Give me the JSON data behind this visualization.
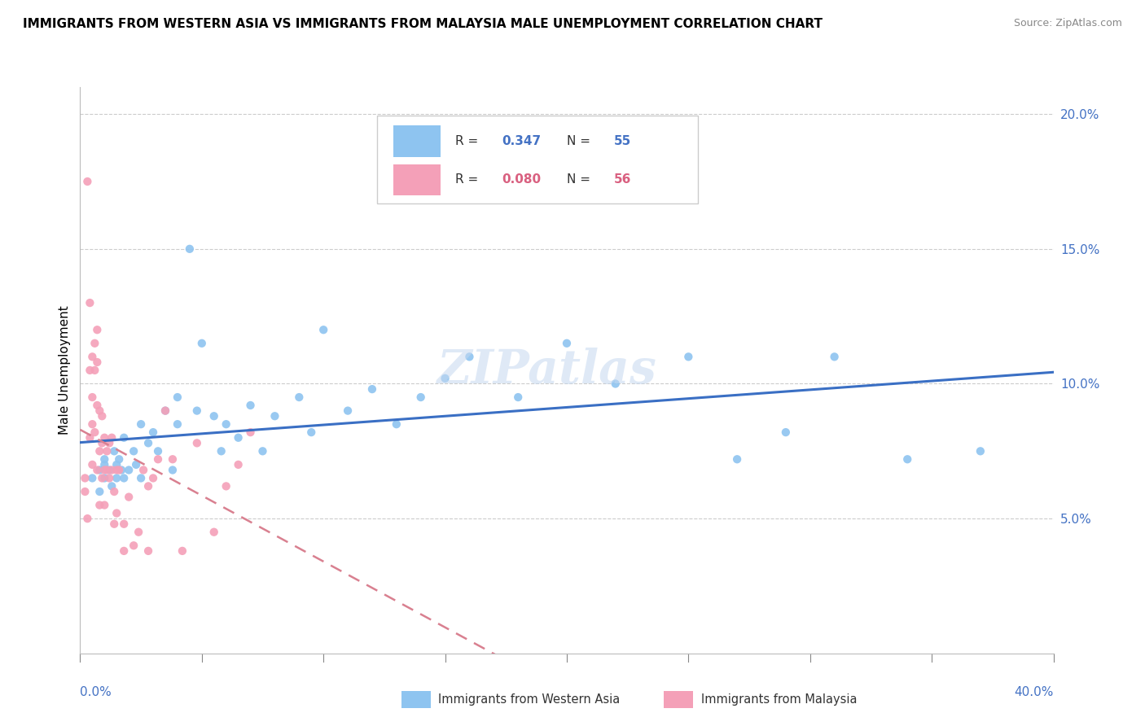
{
  "title": "IMMIGRANTS FROM WESTERN ASIA VS IMMIGRANTS FROM MALAYSIA MALE UNEMPLOYMENT CORRELATION CHART",
  "source": "Source: ZipAtlas.com",
  "ylabel": "Male Unemployment",
  "right_yticks": [
    0.0,
    0.05,
    0.1,
    0.15,
    0.2
  ],
  "right_yticklabels": [
    "",
    "5.0%",
    "10.0%",
    "15.0%",
    "20.0%"
  ],
  "xlim": [
    0.0,
    0.4
  ],
  "ylim": [
    0.0,
    0.21
  ],
  "r_western": "0.347",
  "n_western": "55",
  "r_malaysia": "0.080",
  "n_malaysia": "56",
  "color_western": "#8EC4F0",
  "color_malaysia": "#F4A0B8",
  "color_trend_western": "#3A6FC4",
  "color_trend_malaysia": "#D98090",
  "legend_label_western": "Immigrants from Western Asia",
  "legend_label_malaysia": "Immigrants from Malaysia",
  "western_x": [
    0.005,
    0.008,
    0.008,
    0.01,
    0.01,
    0.01,
    0.012,
    0.013,
    0.014,
    0.015,
    0.015,
    0.016,
    0.017,
    0.018,
    0.018,
    0.02,
    0.022,
    0.023,
    0.025,
    0.025,
    0.028,
    0.03,
    0.032,
    0.035,
    0.038,
    0.04,
    0.04,
    0.045,
    0.048,
    0.05,
    0.055,
    0.058,
    0.06,
    0.065,
    0.07,
    0.075,
    0.08,
    0.09,
    0.095,
    0.1,
    0.11,
    0.12,
    0.13,
    0.14,
    0.15,
    0.16,
    0.18,
    0.2,
    0.22,
    0.25,
    0.27,
    0.29,
    0.31,
    0.34,
    0.37
  ],
  "western_y": [
    0.065,
    0.068,
    0.06,
    0.07,
    0.065,
    0.072,
    0.068,
    0.062,
    0.075,
    0.07,
    0.065,
    0.072,
    0.068,
    0.08,
    0.065,
    0.068,
    0.075,
    0.07,
    0.085,
    0.065,
    0.078,
    0.082,
    0.075,
    0.09,
    0.068,
    0.095,
    0.085,
    0.15,
    0.09,
    0.115,
    0.088,
    0.075,
    0.085,
    0.08,
    0.092,
    0.075,
    0.088,
    0.095,
    0.082,
    0.12,
    0.09,
    0.098,
    0.085,
    0.095,
    0.102,
    0.11,
    0.095,
    0.115,
    0.1,
    0.11,
    0.072,
    0.082,
    0.11,
    0.072,
    0.075
  ],
  "malaysia_x": [
    0.002,
    0.002,
    0.003,
    0.003,
    0.004,
    0.004,
    0.004,
    0.005,
    0.005,
    0.005,
    0.005,
    0.006,
    0.006,
    0.006,
    0.007,
    0.007,
    0.007,
    0.007,
    0.008,
    0.008,
    0.008,
    0.009,
    0.009,
    0.009,
    0.01,
    0.01,
    0.01,
    0.011,
    0.011,
    0.012,
    0.012,
    0.013,
    0.013,
    0.014,
    0.014,
    0.015,
    0.015,
    0.016,
    0.018,
    0.018,
    0.02,
    0.022,
    0.024,
    0.026,
    0.028,
    0.028,
    0.03,
    0.032,
    0.035,
    0.038,
    0.042,
    0.048,
    0.055,
    0.06,
    0.065,
    0.07
  ],
  "malaysia_y": [
    0.065,
    0.06,
    0.175,
    0.05,
    0.13,
    0.105,
    0.08,
    0.095,
    0.11,
    0.085,
    0.07,
    0.115,
    0.105,
    0.082,
    0.12,
    0.108,
    0.092,
    0.068,
    0.09,
    0.075,
    0.055,
    0.088,
    0.078,
    0.065,
    0.08,
    0.068,
    0.055,
    0.075,
    0.068,
    0.078,
    0.065,
    0.08,
    0.068,
    0.06,
    0.048,
    0.068,
    0.052,
    0.068,
    0.048,
    0.038,
    0.058,
    0.04,
    0.045,
    0.068,
    0.062,
    0.038,
    0.065,
    0.072,
    0.09,
    0.072,
    0.038,
    0.078,
    0.045,
    0.062,
    0.07,
    0.082
  ]
}
